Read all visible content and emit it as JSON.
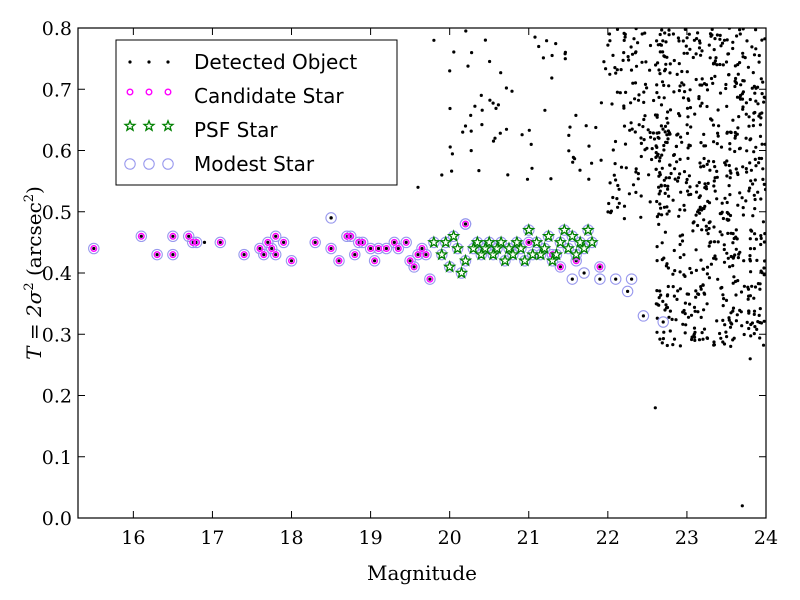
{
  "chart_data": {
    "type": "scatter",
    "xlabel": "Magnitude",
    "ylabel_main": "T = 2σ",
    "ylabel_sup": "2",
    "ylabel_unit_open": " (arcsec",
    "ylabel_unit_sup": "2",
    "ylabel_unit_close": ")",
    "xlim": [
      15.3,
      24
    ],
    "ylim": [
      0.0,
      0.8
    ],
    "xticks": [
      "16",
      "17",
      "18",
      "19",
      "20",
      "21",
      "22",
      "23",
      "24"
    ],
    "yticks": [
      "0.0",
      "0.1",
      "0.2",
      "0.3",
      "0.4",
      "0.5",
      "0.6",
      "0.7",
      "0.8"
    ],
    "legend_position": "top-left",
    "colors": {
      "detected": "#000000",
      "candidate": "#ff00ff",
      "psf": "#008000",
      "modest": "#9999ee"
    },
    "series": [
      {
        "name": "Detected Object",
        "marker": "dot",
        "generated": true,
        "bright_points": [
          [
            16.9,
            0.45
          ],
          [
            18.5,
            0.49
          ],
          [
            19.6,
            0.54
          ],
          [
            19.9,
            0.56
          ],
          [
            19.3,
            0.64
          ],
          [
            20.2,
            0.64
          ],
          [
            20.0,
            0.73
          ],
          [
            19.8,
            0.78
          ],
          [
            20.4,
            0.69
          ],
          [
            22.6,
            0.18
          ],
          [
            23.7,
            0.02
          ],
          [
            23.8,
            0.26
          ],
          [
            23.1,
            0.29
          ]
        ]
      },
      {
        "name": "Candidate Star",
        "marker": "small-circle",
        "points": [
          [
            15.5,
            0.44
          ],
          [
            16.1,
            0.46
          ],
          [
            16.3,
            0.43
          ],
          [
            16.5,
            0.46
          ],
          [
            16.5,
            0.43
          ],
          [
            16.7,
            0.46
          ],
          [
            16.75,
            0.45
          ],
          [
            16.8,
            0.45
          ],
          [
            17.1,
            0.45
          ],
          [
            17.4,
            0.43
          ],
          [
            17.6,
            0.44
          ],
          [
            17.65,
            0.43
          ],
          [
            17.7,
            0.45
          ],
          [
            17.75,
            0.44
          ],
          [
            17.8,
            0.46
          ],
          [
            17.8,
            0.43
          ],
          [
            17.9,
            0.45
          ],
          [
            18.0,
            0.42
          ],
          [
            18.3,
            0.45
          ],
          [
            18.5,
            0.44
          ],
          [
            18.6,
            0.42
          ],
          [
            18.7,
            0.46
          ],
          [
            18.75,
            0.46
          ],
          [
            18.8,
            0.43
          ],
          [
            18.85,
            0.45
          ],
          [
            18.9,
            0.45
          ],
          [
            19.0,
            0.44
          ],
          [
            19.05,
            0.42
          ],
          [
            19.1,
            0.44
          ],
          [
            19.2,
            0.44
          ],
          [
            19.3,
            0.45
          ],
          [
            19.35,
            0.44
          ],
          [
            19.45,
            0.45
          ],
          [
            19.5,
            0.42
          ],
          [
            19.55,
            0.41
          ],
          [
            19.6,
            0.43
          ],
          [
            19.65,
            0.44
          ],
          [
            19.7,
            0.43
          ],
          [
            19.75,
            0.39
          ],
          [
            20.2,
            0.48
          ],
          [
            21.0,
            0.45
          ],
          [
            21.3,
            0.43
          ],
          [
            21.4,
            0.41
          ],
          [
            21.6,
            0.42
          ],
          [
            21.9,
            0.41
          ]
        ]
      },
      {
        "name": "PSF Star",
        "marker": "star",
        "points": [
          [
            19.8,
            0.45
          ],
          [
            19.9,
            0.43
          ],
          [
            19.95,
            0.45
          ],
          [
            20.0,
            0.41
          ],
          [
            20.05,
            0.46
          ],
          [
            20.1,
            0.44
          ],
          [
            20.15,
            0.4
          ],
          [
            20.2,
            0.42
          ],
          [
            20.3,
            0.44
          ],
          [
            20.35,
            0.45
          ],
          [
            20.4,
            0.43
          ],
          [
            20.45,
            0.44
          ],
          [
            20.5,
            0.45
          ],
          [
            20.55,
            0.43
          ],
          [
            20.6,
            0.44
          ],
          [
            20.65,
            0.45
          ],
          [
            20.7,
            0.42
          ],
          [
            20.75,
            0.44
          ],
          [
            20.8,
            0.43
          ],
          [
            20.85,
            0.45
          ],
          [
            20.9,
            0.44
          ],
          [
            20.95,
            0.42
          ],
          [
            21.0,
            0.47
          ],
          [
            21.05,
            0.43
          ],
          [
            21.1,
            0.45
          ],
          [
            21.15,
            0.43
          ],
          [
            21.2,
            0.44
          ],
          [
            21.25,
            0.46
          ],
          [
            21.3,
            0.42
          ],
          [
            21.35,
            0.43
          ],
          [
            21.4,
            0.45
          ],
          [
            21.45,
            0.47
          ],
          [
            21.5,
            0.44
          ],
          [
            21.55,
            0.46
          ],
          [
            21.6,
            0.43
          ],
          [
            21.65,
            0.45
          ],
          [
            21.7,
            0.44
          ],
          [
            21.75,
            0.47
          ],
          [
            21.8,
            0.45
          ]
        ]
      },
      {
        "name": "Modest Star",
        "marker": "open-circle",
        "extra_points": [
          [
            18.5,
            0.49
          ],
          [
            20.2,
            0.48
          ],
          [
            21.55,
            0.39
          ],
          [
            21.9,
            0.39
          ],
          [
            21.7,
            0.4
          ],
          [
            22.1,
            0.39
          ],
          [
            22.3,
            0.39
          ],
          [
            22.25,
            0.37
          ],
          [
            22.45,
            0.33
          ],
          [
            22.7,
            0.32
          ]
        ]
      }
    ]
  }
}
